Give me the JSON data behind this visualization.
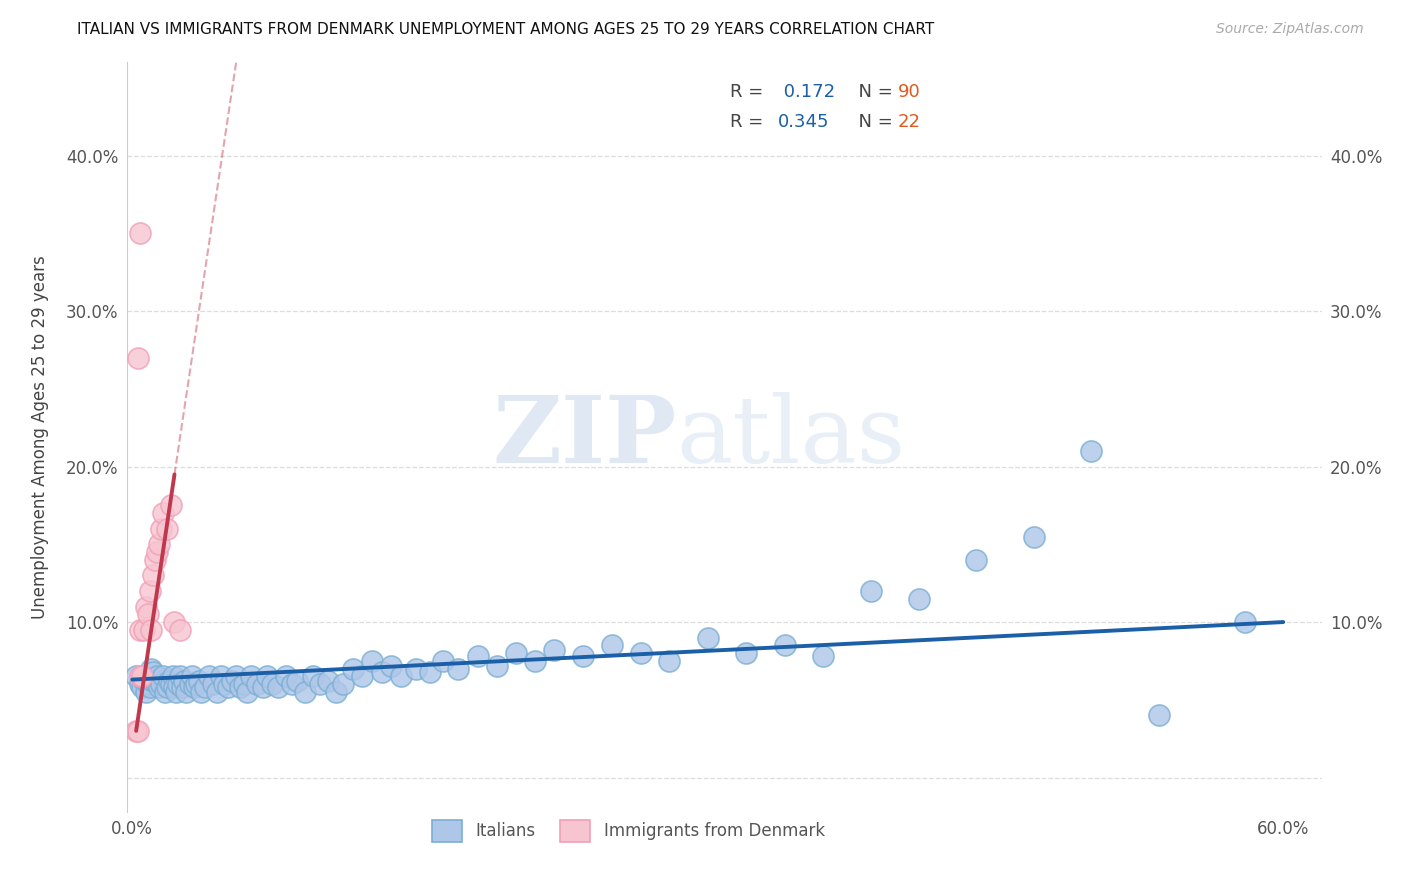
{
  "title": "ITALIAN VS IMMIGRANTS FROM DENMARK UNEMPLOYMENT AMONG AGES 25 TO 29 YEARS CORRELATION CHART",
  "source": "Source: ZipAtlas.com",
  "ylabel": "Unemployment Among Ages 25 to 29 years",
  "xlim": [
    -0.003,
    0.62
  ],
  "ylim": [
    -0.022,
    0.46
  ],
  "xticks": [
    0.0,
    0.1,
    0.2,
    0.3,
    0.4,
    0.5,
    0.6
  ],
  "xticklabels": [
    "0.0%",
    "",
    "",
    "",
    "",
    "",
    "60.0%"
  ],
  "yticks": [
    0.0,
    0.1,
    0.2,
    0.3,
    0.4
  ],
  "yticklabels_left": [
    "",
    "10.0%",
    "20.0%",
    "30.0%",
    "40.0%"
  ],
  "yticklabels_right": [
    "",
    "10.0%",
    "20.0%",
    "30.0%",
    "40.0%"
  ],
  "blue_face": "#aec6e8",
  "blue_edge": "#7aafd4",
  "pink_face": "#f7c5d0",
  "pink_edge": "#f0a0b8",
  "trend_blue": "#1a5fa8",
  "trend_pink": "#c0384e",
  "blue_scatter_x": [
    0.002,
    0.004,
    0.005,
    0.006,
    0.007,
    0.008,
    0.009,
    0.01,
    0.01,
    0.011,
    0.012,
    0.013,
    0.014,
    0.015,
    0.016,
    0.017,
    0.018,
    0.019,
    0.02,
    0.021,
    0.022,
    0.023,
    0.024,
    0.025,
    0.026,
    0.027,
    0.028,
    0.03,
    0.031,
    0.032,
    0.033,
    0.035,
    0.036,
    0.038,
    0.04,
    0.042,
    0.044,
    0.046,
    0.048,
    0.05,
    0.052,
    0.054,
    0.056,
    0.058,
    0.06,
    0.062,
    0.065,
    0.068,
    0.07,
    0.073,
    0.076,
    0.08,
    0.083,
    0.086,
    0.09,
    0.094,
    0.098,
    0.102,
    0.106,
    0.11,
    0.115,
    0.12,
    0.125,
    0.13,
    0.135,
    0.14,
    0.148,
    0.155,
    0.162,
    0.17,
    0.18,
    0.19,
    0.2,
    0.21,
    0.22,
    0.235,
    0.25,
    0.265,
    0.28,
    0.3,
    0.32,
    0.34,
    0.36,
    0.385,
    0.41,
    0.44,
    0.47,
    0.5,
    0.535,
    0.58
  ],
  "blue_scatter_y": [
    0.065,
    0.06,
    0.058,
    0.062,
    0.055,
    0.06,
    0.058,
    0.063,
    0.07,
    0.068,
    0.062,
    0.065,
    0.058,
    0.06,
    0.065,
    0.055,
    0.058,
    0.062,
    0.06,
    0.065,
    0.058,
    0.055,
    0.06,
    0.065,
    0.058,
    0.062,
    0.055,
    0.06,
    0.065,
    0.058,
    0.06,
    0.062,
    0.055,
    0.058,
    0.065,
    0.06,
    0.055,
    0.065,
    0.06,
    0.058,
    0.062,
    0.065,
    0.058,
    0.06,
    0.055,
    0.065,
    0.06,
    0.058,
    0.065,
    0.06,
    0.058,
    0.065,
    0.06,
    0.062,
    0.055,
    0.065,
    0.06,
    0.062,
    0.055,
    0.06,
    0.07,
    0.065,
    0.075,
    0.068,
    0.072,
    0.065,
    0.07,
    0.068,
    0.075,
    0.07,
    0.078,
    0.072,
    0.08,
    0.075,
    0.082,
    0.078,
    0.085,
    0.08,
    0.075,
    0.09,
    0.08,
    0.085,
    0.078,
    0.12,
    0.115,
    0.14,
    0.155,
    0.21,
    0.04,
    0.1
  ],
  "pink_scatter_x": [
    0.002,
    0.003,
    0.004,
    0.004,
    0.005,
    0.006,
    0.007,
    0.008,
    0.009,
    0.01,
    0.011,
    0.012,
    0.013,
    0.014,
    0.015,
    0.016,
    0.018,
    0.02,
    0.022,
    0.025,
    0.003,
    0.004
  ],
  "pink_scatter_y": [
    0.03,
    0.03,
    0.065,
    0.095,
    0.065,
    0.095,
    0.11,
    0.105,
    0.12,
    0.095,
    0.13,
    0.14,
    0.145,
    0.15,
    0.16,
    0.17,
    0.16,
    0.175,
    0.1,
    0.095,
    0.27,
    0.35
  ],
  "R_blue": "0.172",
  "N_blue": "90",
  "R_pink": "0.345",
  "N_pink": "22",
  "watermark_zip": "ZIP",
  "watermark_atlas": "atlas"
}
